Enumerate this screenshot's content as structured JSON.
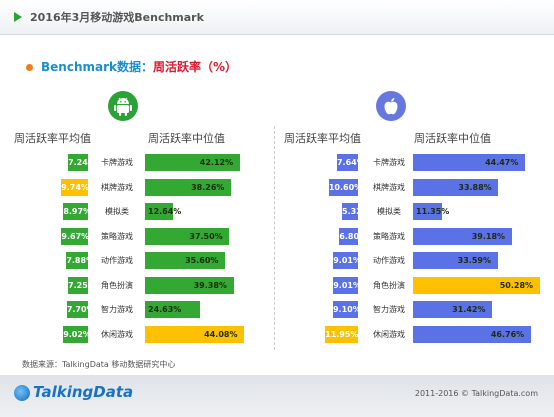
{
  "header": {
    "title": "2016年3月移动游戏Benchmark"
  },
  "subtitle": {
    "part1": "Benchmark数据：",
    "part2": "周活跃率（%）"
  },
  "icons": {
    "android": "android-icon",
    "apple": "apple-icon"
  },
  "colors": {
    "green": "#33a832",
    "orange": "#ffc000",
    "blue": "#5b72e6",
    "android_bg": "#2aa336",
    "apple_bg": "#6678e0"
  },
  "chart_data": [
    {
      "type": "bar",
      "platform": "android",
      "categories": [
        "卡牌游戏",
        "棋牌游戏",
        "模拟类",
        "策略游戏",
        "动作游戏",
        "角色扮演",
        "智力游戏",
        "休闲游戏"
      ],
      "series": [
        {
          "name": "周活跃率平均值",
          "values": [
            7.24,
            9.74,
            8.97,
            9.67,
            7.88,
            7.25,
            7.7,
            9.02
          ],
          "labels": [
            "7.24%",
            "9.74%",
            "8.97%",
            "9.67%",
            "7.88%",
            "7.25%",
            "7.70%",
            "9.02%"
          ],
          "highlight_index": 1
        },
        {
          "name": "周活跃率中位值",
          "values": [
            42.12,
            38.26,
            12.64,
            37.5,
            35.6,
            39.38,
            24.63,
            44.08
          ],
          "labels": [
            "42.12%",
            "38.26%",
            "12.64%",
            "37.50%",
            "35.60%",
            "39.38%",
            "24.63%",
            "44.08%"
          ],
          "highlight_index": 7
        }
      ]
    },
    {
      "type": "bar",
      "platform": "ios",
      "categories": [
        "卡牌游戏",
        "棋牌游戏",
        "模拟类",
        "策略游戏",
        "动作游戏",
        "角色扮演",
        "智力游戏",
        "休闲游戏"
      ],
      "series": [
        {
          "name": "周活跃率平均值",
          "values": [
            7.64,
            10.6,
            5.32,
            6.8,
            9.01,
            9.01,
            9.1,
            11.95
          ],
          "labels": [
            "7.64%",
            "10.60%",
            "5.32%",
            "6.80%",
            "9.01%",
            "9.01%",
            "9.10%",
            "11.95%"
          ],
          "highlight_index": 7
        },
        {
          "name": "周活跃率中位值",
          "values": [
            44.47,
            33.88,
            11.35,
            39.18,
            33.59,
            50.28,
            31.42,
            46.76
          ],
          "labels": [
            "44.47%",
            "33.88%",
            "11.35%",
            "39.18%",
            "33.59%",
            "50.28%",
            "31.42%",
            "46.76%"
          ],
          "highlight_index": 5
        }
      ]
    }
  ],
  "source": "数据来源：TalkingData 移动数据研究中心",
  "footer": {
    "logo": "TalkingData",
    "copyright": "2011-2016 © TalkingData.com"
  }
}
